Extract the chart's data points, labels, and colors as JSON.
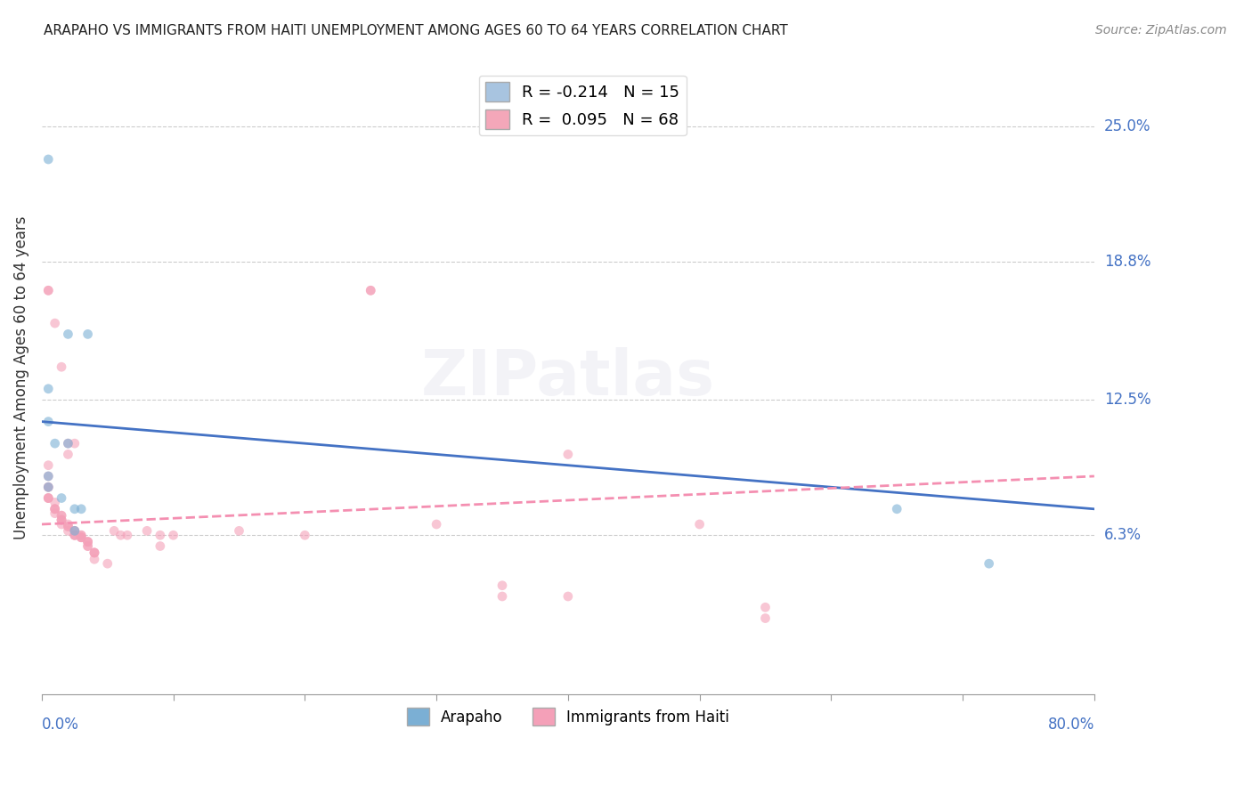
{
  "title": "ARAPAHO VS IMMIGRANTS FROM HAITI UNEMPLOYMENT AMONG AGES 60 TO 64 YEARS CORRELATION CHART",
  "source": "Source: ZipAtlas.com",
  "ylabel": "Unemployment Among Ages 60 to 64 years",
  "ytick_labels": [
    "6.3%",
    "12.5%",
    "18.8%",
    "25.0%"
  ],
  "ytick_values": [
    0.063,
    0.125,
    0.188,
    0.25
  ],
  "xlim": [
    0.0,
    0.8
  ],
  "ylim": [
    -0.01,
    0.28
  ],
  "legend_entry1_label": "R = -0.214   N = 15",
  "legend_entry1_color": "#a8c4e0",
  "legend_entry2_label": "R =  0.095   N = 68",
  "legend_entry2_color": "#f4a7b9",
  "arapaho_scatter": [
    [
      0.005,
      0.235
    ],
    [
      0.02,
      0.155
    ],
    [
      0.005,
      0.13
    ],
    [
      0.035,
      0.155
    ],
    [
      0.005,
      0.115
    ],
    [
      0.01,
      0.105
    ],
    [
      0.02,
      0.105
    ],
    [
      0.005,
      0.09
    ],
    [
      0.005,
      0.085
    ],
    [
      0.015,
      0.08
    ],
    [
      0.025,
      0.075
    ],
    [
      0.03,
      0.075
    ],
    [
      0.025,
      0.065
    ],
    [
      0.65,
      0.075
    ],
    [
      0.72,
      0.05
    ]
  ],
  "haiti_scatter": [
    [
      0.005,
      0.175
    ],
    [
      0.005,
      0.175
    ],
    [
      0.01,
      0.16
    ],
    [
      0.015,
      0.14
    ],
    [
      0.02,
      0.105
    ],
    [
      0.025,
      0.105
    ],
    [
      0.02,
      0.1
    ],
    [
      0.005,
      0.095
    ],
    [
      0.005,
      0.09
    ],
    [
      0.005,
      0.085
    ],
    [
      0.005,
      0.085
    ],
    [
      0.005,
      0.08
    ],
    [
      0.005,
      0.08
    ],
    [
      0.005,
      0.08
    ],
    [
      0.01,
      0.078
    ],
    [
      0.01,
      0.075
    ],
    [
      0.01,
      0.075
    ],
    [
      0.01,
      0.075
    ],
    [
      0.01,
      0.073
    ],
    [
      0.015,
      0.072
    ],
    [
      0.015,
      0.072
    ],
    [
      0.015,
      0.07
    ],
    [
      0.015,
      0.07
    ],
    [
      0.015,
      0.07
    ],
    [
      0.015,
      0.068
    ],
    [
      0.02,
      0.068
    ],
    [
      0.02,
      0.067
    ],
    [
      0.02,
      0.067
    ],
    [
      0.02,
      0.065
    ],
    [
      0.025,
      0.065
    ],
    [
      0.025,
      0.065
    ],
    [
      0.025,
      0.063
    ],
    [
      0.025,
      0.063
    ],
    [
      0.025,
      0.063
    ],
    [
      0.03,
      0.063
    ],
    [
      0.03,
      0.063
    ],
    [
      0.03,
      0.062
    ],
    [
      0.03,
      0.062
    ],
    [
      0.03,
      0.062
    ],
    [
      0.035,
      0.06
    ],
    [
      0.035,
      0.06
    ],
    [
      0.035,
      0.06
    ],
    [
      0.035,
      0.058
    ],
    [
      0.035,
      0.058
    ],
    [
      0.04,
      0.055
    ],
    [
      0.04,
      0.055
    ],
    [
      0.04,
      0.055
    ],
    [
      0.04,
      0.052
    ],
    [
      0.05,
      0.05
    ],
    [
      0.055,
      0.065
    ],
    [
      0.06,
      0.063
    ],
    [
      0.065,
      0.063
    ],
    [
      0.08,
      0.065
    ],
    [
      0.09,
      0.063
    ],
    [
      0.09,
      0.058
    ],
    [
      0.1,
      0.063
    ],
    [
      0.15,
      0.065
    ],
    [
      0.2,
      0.063
    ],
    [
      0.25,
      0.175
    ],
    [
      0.25,
      0.175
    ],
    [
      0.3,
      0.068
    ],
    [
      0.35,
      0.04
    ],
    [
      0.35,
      0.035
    ],
    [
      0.4,
      0.035
    ],
    [
      0.4,
      0.1
    ],
    [
      0.5,
      0.068
    ],
    [
      0.55,
      0.03
    ],
    [
      0.55,
      0.025
    ]
  ],
  "arapaho_line_x": [
    0.0,
    0.8
  ],
  "arapaho_line_y": [
    0.115,
    0.075
  ],
  "haiti_line_x": [
    0.0,
    0.8
  ],
  "haiti_line_y": [
    0.068,
    0.09
  ],
  "bg_color": "#ffffff",
  "scatter_alpha": 0.6,
  "scatter_size": 60,
  "arapaho_color": "#7bafd4",
  "haiti_color": "#f4a0b8",
  "arapaho_line_color": "#4472c4",
  "haiti_line_color": "#f48fb1",
  "x_ticks": [
    0.0,
    0.1,
    0.2,
    0.3,
    0.4,
    0.5,
    0.6,
    0.7,
    0.8
  ]
}
